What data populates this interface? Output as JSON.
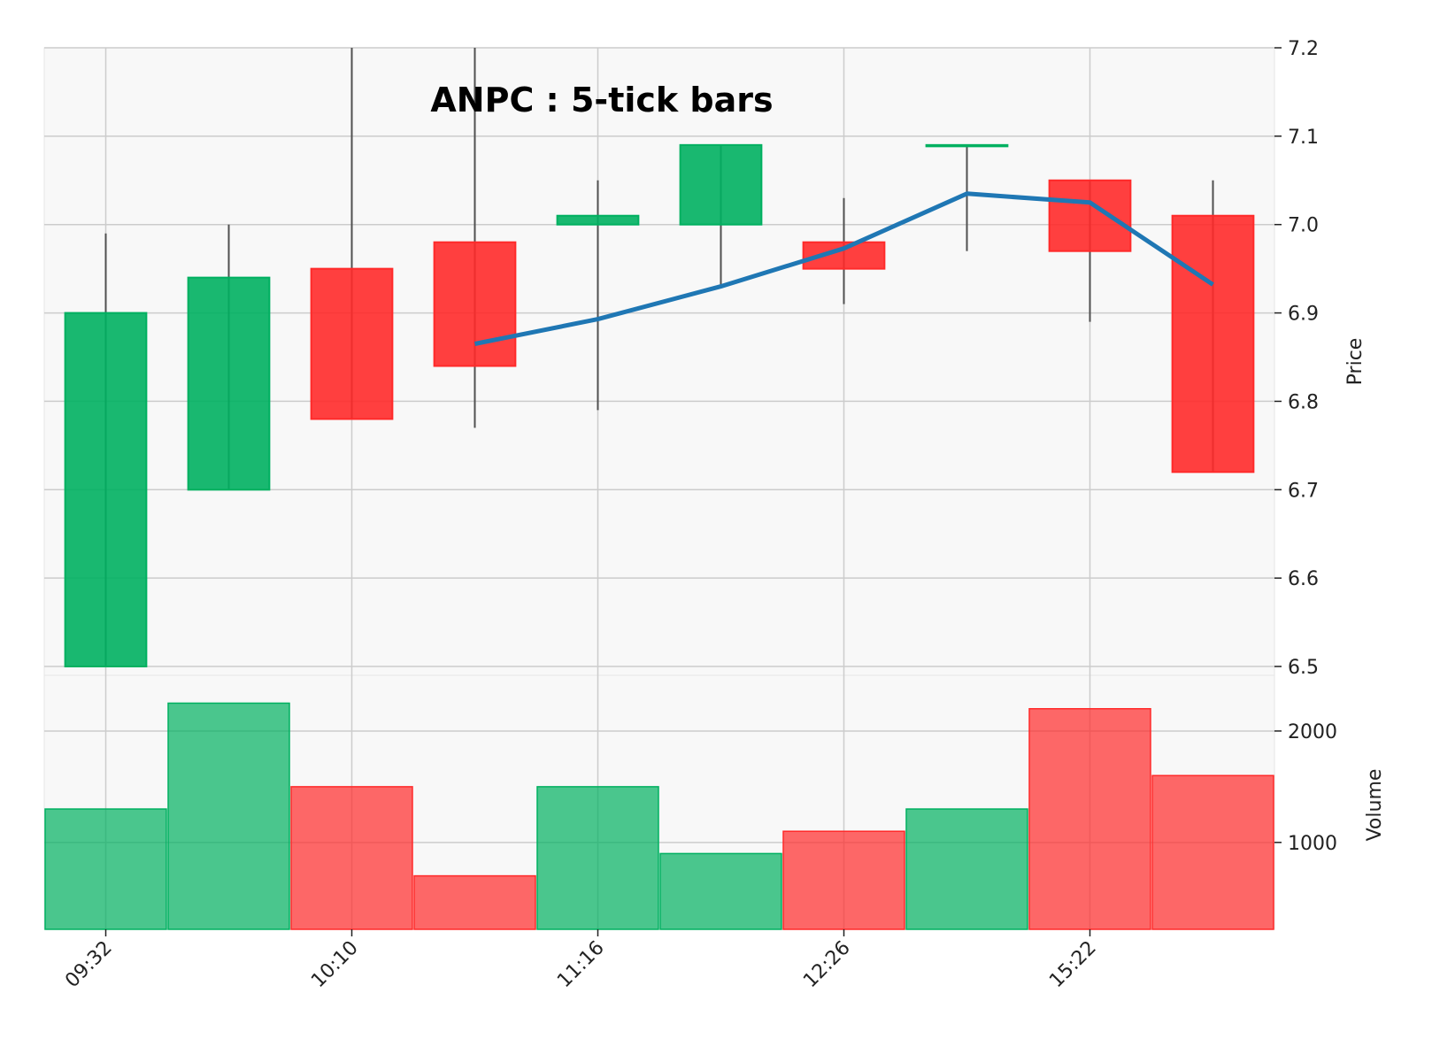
{
  "chart_data": {
    "type": "candlestick",
    "title": "ANPC : 5-tick bars",
    "x_tick_labels": [
      {
        "index": 0,
        "label": "09:32"
      },
      {
        "index": 2,
        "label": "10:10"
      },
      {
        "index": 4,
        "label": "11:16"
      },
      {
        "index": 6,
        "label": "12:26"
      },
      {
        "index": 8,
        "label": "15:22"
      }
    ],
    "candles": [
      {
        "open": 6.5,
        "high": 6.99,
        "low": 6.5,
        "close": 6.9,
        "volume": 1300
      },
      {
        "open": 6.7,
        "high": 7.0,
        "low": 6.7,
        "close": 6.94,
        "volume": 2250
      },
      {
        "open": 6.95,
        "high": 7.2,
        "low": 6.78,
        "close": 6.78,
        "volume": 1500
      },
      {
        "open": 6.98,
        "high": 7.2,
        "low": 6.77,
        "close": 6.84,
        "volume": 700
      },
      {
        "open": 7.0,
        "high": 7.05,
        "low": 6.79,
        "close": 7.01,
        "volume": 1500
      },
      {
        "open": 7.0,
        "high": 7.09,
        "low": 6.93,
        "close": 7.09,
        "volume": 900
      },
      {
        "open": 6.98,
        "high": 7.03,
        "low": 6.91,
        "close": 6.95,
        "volume": 1100
      },
      {
        "open": 7.09,
        "high": 7.09,
        "low": 6.97,
        "close": 7.09,
        "volume": 1300
      },
      {
        "open": 7.05,
        "high": 7.05,
        "low": 6.89,
        "close": 6.97,
        "volume": 2200
      },
      {
        "open": 7.01,
        "high": 7.05,
        "low": 6.72,
        "close": 6.72,
        "volume": 1600
      }
    ],
    "moving_average": {
      "start_index": 3,
      "values": [
        6.865,
        6.893,
        6.93,
        6.973,
        7.035,
        7.025,
        6.932
      ]
    },
    "price_axis": {
      "label": "Price",
      "ticks": [
        6.5,
        6.6,
        6.7,
        6.8,
        6.9,
        7.0,
        7.1,
        7.2
      ],
      "range": [
        6.49,
        7.2
      ],
      "side": "right"
    },
    "volume_axis": {
      "label": "Volume",
      "ticks": [
        1000,
        2000
      ],
      "tick_labels": [
        "1000",
        "2000"
      ],
      "range": [
        220,
        2500
      ],
      "side": "right"
    },
    "grid": true,
    "colors": {
      "up": "#00b060",
      "down": "#ff2a2a",
      "wick": "#505050",
      "ma_line": "#1f77b4",
      "panel_bg": "#f8f8f8",
      "grid": "#cccccc"
    }
  }
}
